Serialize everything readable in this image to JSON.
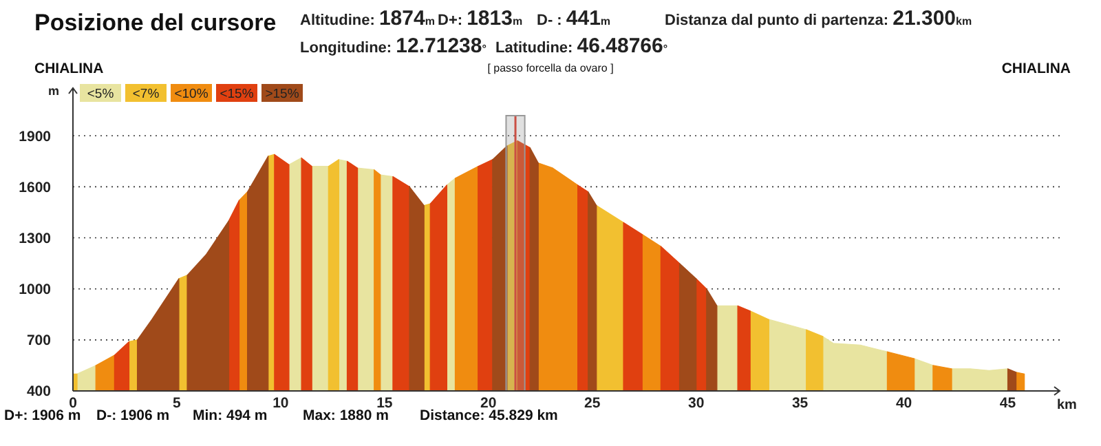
{
  "chart_data": {
    "type": "area",
    "title": "Posizione del cursore",
    "xlabel": "km",
    "ylabel": "m",
    "xlim": [
      0,
      47.5
    ],
    "ylim": [
      400,
      2180
    ],
    "xticks": [
      0,
      5,
      10,
      15,
      20,
      25,
      30,
      35,
      40,
      45
    ],
    "yticks": [
      400,
      700,
      1000,
      1300,
      1600,
      1900
    ],
    "grid": "y",
    "legend": "top left",
    "ref_lines": [
      {
        "axis": "x",
        "value": 21.3,
        "color": "#e03020"
      }
    ],
    "bands": [
      {
        "axis": "x",
        "from": 20.85,
        "to": 21.75,
        "color": "#999999"
      }
    ],
    "annotations": [
      "Altitudine: 1874m",
      "D+: 1813m",
      "D- : 441m",
      "Distanza dal punto di partenza: 21.300km",
      "Longitudine: 12.71238°",
      "Latitudine: 46.48766°",
      "CHIALINA",
      "[ passo forcella da ovaro ]",
      "CHIALINA",
      "D+: 1906 m",
      "D-: 1906 m",
      "Min: 494 m",
      "Max: 1880 m",
      "Distance: 45.829 km"
    ],
    "series": [
      {
        "name": "<5%",
        "color": "#e8e4a0",
        "x": [
          0.2,
          1.1,
          null,
          10.4,
          11.0,
          null,
          11.5,
          12.3,
          null,
          12.8,
          13.2,
          null,
          13.7,
          14.5,
          null,
          14.8,
          15.4,
          null,
          18.0,
          18.4,
          null,
          31.0,
          32.0,
          null,
          33.5,
          35.3,
          null,
          36.1,
          36.6,
          37.9,
          39.2,
          null,
          40.5,
          41.4,
          null,
          42.3,
          43.2,
          44.1,
          45.0
        ],
        "values": [
          500,
          550,
          null,
          1730,
          1770,
          null,
          1720,
          1720,
          null,
          1760,
          1750,
          null,
          1710,
          1700,
          null,
          1670,
          1660,
          null,
          1610,
          1650,
          null,
          900,
          900,
          null,
          820,
          760,
          null,
          720,
          680,
          670,
          630,
          null,
          590,
          550,
          null,
          530,
          530,
          520,
          530
        ]
      },
      {
        "name": "<7%",
        "color": "#f2c030",
        "x": [
          0,
          0.2,
          null,
          2.7,
          3.1,
          null,
          5.1,
          5.5,
          null,
          9.4,
          9.7,
          null,
          12.3,
          12.8,
          null,
          16.9,
          17.2,
          null,
          20.9,
          21.4,
          null,
          25.2,
          26.5,
          null,
          32.6,
          33.5,
          null,
          35.3,
          36.1
        ],
        "values": [
          500,
          500,
          null,
          690,
          700,
          null,
          1060,
          1080,
          null,
          1780,
          1790,
          null,
          1720,
          1760,
          null,
          1490,
          1500,
          null,
          1840,
          1870,
          null,
          1490,
          1390,
          null,
          870,
          820,
          null,
          760,
          720
        ]
      },
      {
        "name": "<10%",
        "color": "#f08c10",
        "x": [
          1.1,
          2.0,
          null,
          8.0,
          8.4,
          null,
          14.5,
          14.8,
          null,
          18.4,
          19.5,
          null,
          22.4,
          23.1,
          24.3,
          null,
          27.4,
          28.3,
          null,
          39.2,
          40.5,
          null,
          41.4,
          42.3,
          null,
          45.4,
          45.8
        ],
        "values": [
          550,
          610,
          null,
          1520,
          1570,
          null,
          1700,
          1670,
          null,
          1650,
          1720,
          null,
          1740,
          1710,
          1610,
          null,
          1320,
          1250,
          null,
          630,
          590,
          null,
          550,
          530,
          null,
          510,
          500
        ]
      },
      {
        "name": "<15%",
        "color": "#e04010",
        "x": [
          2.0,
          2.7,
          null,
          7.5,
          8.0,
          null,
          9.7,
          10.4,
          null,
          11.0,
          11.5,
          null,
          13.2,
          13.7,
          null,
          15.4,
          16.2,
          null,
          17.2,
          18.0,
          null,
          19.5,
          20.2,
          null,
          21.4,
          22.0,
          null,
          24.3,
          24.8,
          null,
          26.5,
          27.4,
          null,
          28.3,
          29.2,
          null,
          30.0,
          30.5,
          null,
          32.0,
          32.6
        ],
        "values": [
          610,
          690,
          null,
          1400,
          1520,
          null,
          1790,
          1730,
          null,
          1770,
          1720,
          null,
          1750,
          1710,
          null,
          1660,
          1600,
          null,
          1500,
          1610,
          null,
          1720,
          1760,
          null,
          1870,
          1830,
          null,
          1610,
          1570,
          null,
          1390,
          1320,
          null,
          1250,
          1150,
          null,
          1060,
          1000,
          null,
          900,
          870
        ]
      },
      {
        "name": ">15%",
        "color": "#a04a1a",
        "x": [
          3.1,
          3.8,
          5.1,
          null,
          5.5,
          6.4,
          7.5,
          null,
          8.4,
          9.4,
          null,
          16.2,
          16.9,
          null,
          20.2,
          20.9,
          null,
          22.0,
          22.4,
          null,
          24.8,
          25.2,
          null,
          29.2,
          30.0,
          null,
          30.5,
          31.0,
          null,
          45.0,
          45.4
        ],
        "values": [
          700,
          820,
          1060,
          null,
          1080,
          1200,
          1400,
          null,
          1570,
          1780,
          null,
          1600,
          1490,
          null,
          1760,
          1840,
          null,
          1830,
          1740,
          null,
          1570,
          1490,
          null,
          1150,
          1060,
          null,
          1000,
          900,
          null,
          530,
          510
        ]
      }
    ]
  }
}
